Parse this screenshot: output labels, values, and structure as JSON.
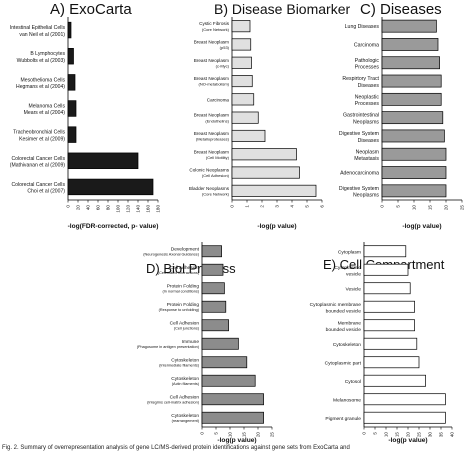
{
  "figure": {
    "caption": "Fig. 2. Summary of overrepresentation analysis of gene LC/MS-derived protein identifications against gene sets from ExoCarta and"
  },
  "chart_data": [
    {
      "panel": "A)",
      "title": "ExoCarta",
      "type": "bar",
      "orientation": "horizontal",
      "xlabel": "-log(FDR-corrected, p- value)",
      "xlim": [
        0,
        180
      ],
      "xticks": [
        "0",
        "20",
        "40",
        "60",
        "80",
        "100",
        "120",
        "140",
        "160",
        "180"
      ],
      "bar_color": "#1a1a1a",
      "grid": false,
      "categories": [
        {
          "label": "Intestinal Epithelial Cells",
          "sub": "van Neil et al (2001)"
        },
        {
          "label": "B Lymphocytes",
          "sub": "Wubbolts et al (2003)"
        },
        {
          "label": "Mesothelioma Cells",
          "sub": "Hegmans et al (2004)"
        },
        {
          "label": "Melanoma Cells",
          "sub": "Mears et al (2004)"
        },
        {
          "label": "Tracheobronchial Cells",
          "sub": "Kesimer et al (2009)"
        },
        {
          "label": "Colorectal Cancer Cells",
          "sub": "(Mathivanan et al (2009)"
        },
        {
          "label": "Colorectal Cancer Cells",
          "sub": "Choi et al (2007)"
        }
      ],
      "values": [
        6,
        11,
        14,
        16,
        16,
        140,
        170
      ]
    },
    {
      "panel": "B)",
      "title": "Disease Biomarker",
      "type": "bar",
      "orientation": "horizontal",
      "xlabel": "-log(p value)",
      "xlim": [
        0,
        6
      ],
      "xticks": [
        "0",
        "1",
        "2",
        "3",
        "4",
        "5",
        "6"
      ],
      "bar_color": "#e0e0e0",
      "grid": false,
      "categories": [
        {
          "label": "Cystic Fibrosis",
          "sub": "(Core Network)"
        },
        {
          "label": "Breast Neoplasm",
          "sub": "(p53)"
        },
        {
          "label": "Breast Neoplasm",
          "sub": "(c-Myc)"
        },
        {
          "label": "Breast Neoplasm",
          "sub": "(NO-metabolism)"
        },
        {
          "label": "Carcinoma",
          "sub": ""
        },
        {
          "label": "Breast Neoplasm",
          "sub": "(Endothelins)"
        },
        {
          "label": "Breast Neoplasm",
          "sub": "(Metalloproteases)"
        },
        {
          "label": "Breast Neoplasm",
          "sub": "(Cell Motility)"
        },
        {
          "label": "Colonic Neoplasms",
          "sub": "(Cell Adhesion)"
        },
        {
          "label": "Bladder Neoplasms",
          "sub": "(Core Network)"
        }
      ],
      "values": [
        1.2,
        1.25,
        1.3,
        1.35,
        1.45,
        1.75,
        2.2,
        4.3,
        4.5,
        5.6
      ]
    },
    {
      "panel": "C)",
      "title": "Diseases",
      "type": "bar",
      "orientation": "horizontal",
      "xlabel": "-log(p value)",
      "xlim": [
        0,
        25
      ],
      "xticks": [
        "0",
        "5",
        "10",
        "15",
        "20",
        "25"
      ],
      "bar_color": "#9a9a9a",
      "grid": false,
      "categories": [
        {
          "label": "Lung Diseases",
          "sub": ""
        },
        {
          "label": "Carcinoma",
          "sub": ""
        },
        {
          "label": "Pathologic",
          "sub": "Processes"
        },
        {
          "label": "Respirtory Tract",
          "sub": "Diseases"
        },
        {
          "label": "Neoplastic",
          "sub": "Processes"
        },
        {
          "label": "Gastrointestinal",
          "sub": "Neoplasms"
        },
        {
          "label": "Digestive System",
          "sub": "Diseases"
        },
        {
          "label": "Neoplasm",
          "sub": "Metastasis"
        },
        {
          "label": "Adenocarcinoma",
          "sub": ""
        },
        {
          "label": "Digestive System",
          "sub": "Neoplasms"
        }
      ],
      "values": [
        17,
        17.5,
        18,
        18.5,
        18.5,
        19,
        19.5,
        20,
        20,
        20
      ]
    },
    {
      "panel": "D)",
      "title": "Biol Process",
      "type": "bar",
      "orientation": "horizontal",
      "xlabel": "-log(p value)",
      "xlim": [
        0,
        25
      ],
      "xticks": [
        "0",
        "5",
        "10",
        "15",
        "20",
        "25"
      ],
      "bar_color": "#8c8c8c",
      "grid": false,
      "categories": [
        {
          "label": "Development",
          "sub": "(Neurogenesis Axonal Guidance)"
        },
        {
          "label": "Cell Adhesion",
          "sub": "(Cell-matrix interactions)"
        },
        {
          "label": "Protein Folding",
          "sub": "(In normal conditions)"
        },
        {
          "label": "Protein Folding",
          "sub": "(Response to unfolding)"
        },
        {
          "label": "Cell Adhesion",
          "sub": "(Cell junctions)"
        },
        {
          "label": "Immune",
          "sub": "(Phagosome in antigen presentation)"
        },
        {
          "label": "Cytoskeleton",
          "sub": "(Intermediate filaments)"
        },
        {
          "label": "Cytoskeleton",
          "sub": "(Actin filaments)"
        },
        {
          "label": "Cell Adhesion",
          "sub": "(Integrins cell-matrix adhesion)"
        },
        {
          "label": "Cytoskeleton",
          "sub": "(rearrangement)"
        }
      ],
      "values": [
        7,
        7.5,
        8,
        8.5,
        9.5,
        13,
        16,
        19,
        22,
        22
      ]
    },
    {
      "panel": "E)",
      "title": "Cell Compartment",
      "type": "bar",
      "orientation": "horizontal",
      "xlabel": "-log(p value)",
      "xlim": [
        0,
        40
      ],
      "xticks": [
        "0",
        "5",
        "10",
        "15",
        "20",
        "25",
        "30",
        "35",
        "40"
      ],
      "bar_color": "#ffffff",
      "grid": false,
      "categories": [
        {
          "label": "Cytoplasm",
          "sub": ""
        },
        {
          "label": "Cytoplasmic",
          "sub": "vesicle"
        },
        {
          "label": "Vesicle",
          "sub": ""
        },
        {
          "label": "Cytoplasmic membrane",
          "sub": "bounded vesicle"
        },
        {
          "label": "Membrane",
          "sub": "bounded vesicle"
        },
        {
          "label": "Cytoskeleton",
          "sub": ""
        },
        {
          "label": "Cytoplasmic part",
          "sub": ""
        },
        {
          "label": "Cytosol",
          "sub": ""
        },
        {
          "label": "Melanosome",
          "sub": ""
        },
        {
          "label": "Pigment granule",
          "sub": ""
        }
      ],
      "values": [
        19,
        20,
        21,
        23,
        23,
        24,
        25,
        28,
        37,
        37
      ]
    }
  ]
}
